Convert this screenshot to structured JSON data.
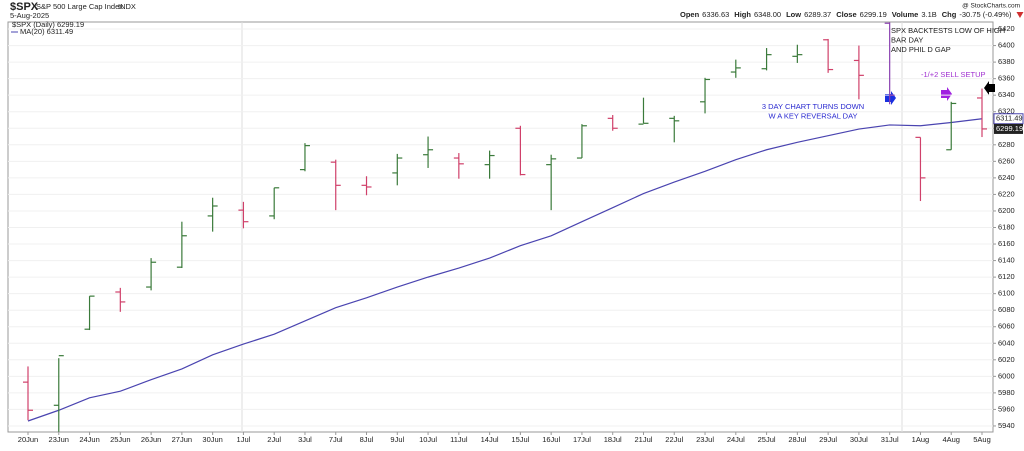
{
  "chart_data": {
    "type": "ohlc",
    "title": "$SPX",
    "subtitle": "S&P 500 Large Cap Index",
    "exchange": "INDX",
    "date": "5-Aug-2025",
    "credit": "@ StockCharts.com",
    "quote": [
      {
        "label": "Open",
        "value": "6336.63"
      },
      {
        "label": "High",
        "value": "6348.00"
      },
      {
        "label": "Low",
        "value": "6289.37"
      },
      {
        "label": "Close",
        "value": "6299.19"
      },
      {
        "label": "Volume",
        "value": "3.1B"
      },
      {
        "label": "Chg",
        "value": "-30.75 (-0.49%)"
      }
    ],
    "categories": [
      "20Jun",
      "23Jun",
      "24Jun",
      "25Jun",
      "26Jun",
      "27Jun",
      "30Jun",
      "1Jul",
      "2Jul",
      "3Jul",
      "7Jul",
      "8Jul",
      "9Jul",
      "10Jul",
      "11Jul",
      "14Jul",
      "15Jul",
      "16Jul",
      "17Jul",
      "18Jul",
      "21Jul",
      "22Jul",
      "23Jul",
      "24Jul",
      "25Jul",
      "28Jul",
      "29Jul",
      "30Jul",
      "31Jul",
      "1Aug",
      "4Aug",
      "5Aug"
    ],
    "price": {
      "name": "$SPX (Daily) 6299.19",
      "open": [
        5993,
        5965,
        6057,
        6102,
        6108,
        6132,
        6194,
        6201,
        6194,
        6250,
        6259,
        6231,
        6246,
        6268,
        6264,
        6256,
        6300,
        6256,
        6264,
        6312,
        6305,
        6312,
        6332,
        6368,
        6372,
        6387,
        6407,
        6382,
        6427,
        6289,
        6274,
        6336.63
      ],
      "high": [
        6012,
        6022,
        6097,
        6107,
        6143,
        6187,
        6216,
        6211,
        6228,
        6282,
        6262,
        6242,
        6269,
        6290,
        6270,
        6273,
        6303,
        6268,
        6305,
        6316,
        6337,
        6315,
        6361,
        6383,
        6397,
        6401,
        6408,
        6400,
        6428,
        6289,
        6332,
        6348.0
      ],
      "low": [
        5947,
        5933,
        6056,
        6078,
        6104,
        6131,
        6175,
        6179,
        6190,
        6248,
        6201,
        6219,
        6231,
        6252,
        6239,
        6239,
        6243,
        6201,
        6264,
        6297,
        6306,
        6283,
        6318,
        6361,
        6370,
        6379,
        6367,
        6335,
        6329,
        6212,
        6274,
        6289.37
      ],
      "close": [
        5959,
        6025,
        6097,
        6090,
        6138,
        6170,
        6206,
        6187,
        6228,
        6279,
        6231,
        6229,
        6264,
        6274,
        6257,
        6267,
        6244,
        6263,
        6303,
        6300,
        6306,
        6309,
        6359,
        6373,
        6389,
        6389,
        6371,
        6364,
        6340,
        6240,
        6330,
        6299.19
      ],
      "colors": [
        "#d0406a",
        "#3a7a3a",
        "#3a7a3a",
        "#d0406a",
        "#3a7a3a",
        "#3a7a3a",
        "#3a7a3a",
        "#d0406a",
        "#3a7a3a",
        "#3a7a3a",
        "#d0406a",
        "#d0406a",
        "#3a7a3a",
        "#3a7a3a",
        "#d0406a",
        "#3a7a3a",
        "#d0406a",
        "#3a7a3a",
        "#3a7a3a",
        "#d0406a",
        "#3a7a3a",
        "#3a7a3a",
        "#3a7a3a",
        "#3a7a3a",
        "#3a7a3a",
        "#3a7a3a",
        "#d0406a",
        "#d0406a",
        "#8a3fb0",
        "#d0406a",
        "#3a7a3a",
        "#d0406a"
      ]
    },
    "series": [
      {
        "name": "MA(20) 6311.49",
        "color": "#4a44b0",
        "values": [
          5946,
          5959,
          5974,
          5982,
          5996,
          6009,
          6026,
          6039,
          6051,
          6067,
          6083,
          6095,
          6108,
          6120,
          6131,
          6143,
          6158,
          6170,
          6187,
          6204,
          6221,
          6235,
          6248,
          6262,
          6274,
          6283,
          6291,
          6299,
          6304,
          6303,
          6307,
          6311.49
        ]
      }
    ],
    "ylim": [
      5932.7,
      6428.5
    ],
    "yticks": [
      5940,
      5960,
      5980,
      6000,
      6020,
      6040,
      6060,
      6080,
      6100,
      6120,
      6140,
      6160,
      6180,
      6200,
      6220,
      6240,
      6260,
      6280,
      6300,
      6320,
      6340,
      6360,
      6380,
      6400,
      6420
    ],
    "grid": true,
    "annotations": [
      {
        "lines": [
          "SPX BACKTESTS LOW OF HIGH",
          "BAR DAY",
          "AND PHIL D GAP"
        ],
        "color": "#222222"
      },
      {
        "lines": [
          "3 DAY CHART TURNS DOWN",
          "W A KEY REVERSAL DAY"
        ],
        "color": "#2a2ad0"
      },
      {
        "lines": [
          "-1/+2  SELL SETUP"
        ],
        "color": "#a030d0"
      }
    ]
  }
}
